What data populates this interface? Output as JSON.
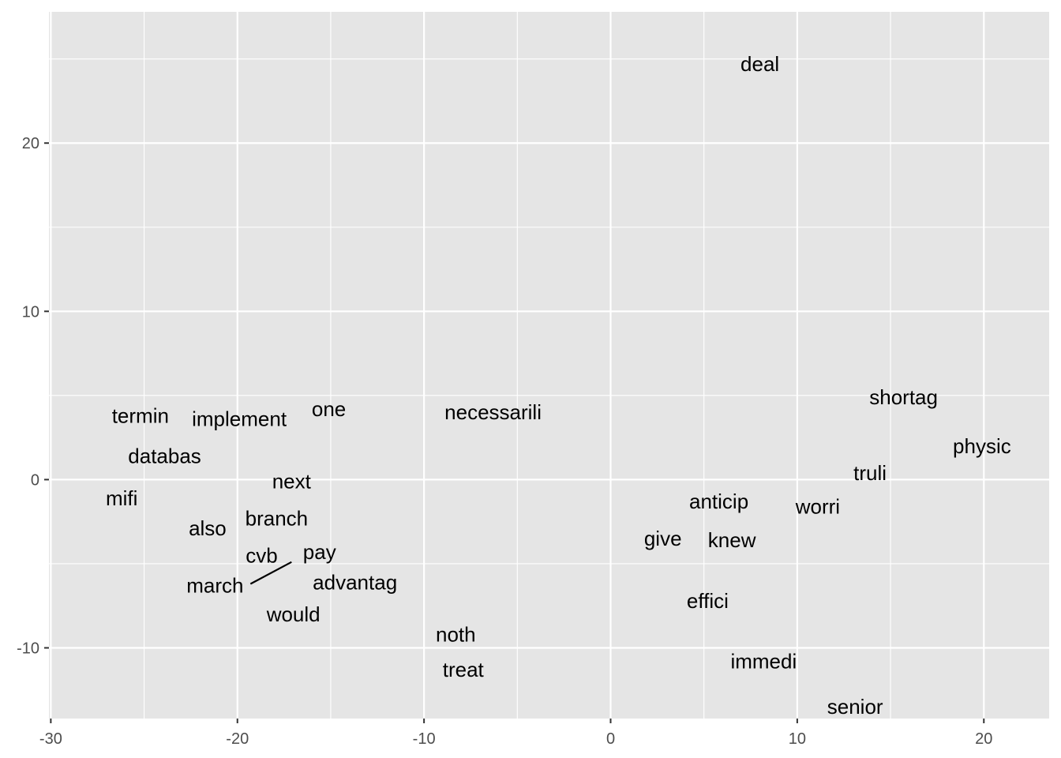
{
  "chart_data": {
    "type": "scatter",
    "title": "",
    "xlabel": "",
    "ylabel": "",
    "xlim": [
      -30.1,
      23.5
    ],
    "ylim": [
      -14.2,
      27.8
    ],
    "x_ticks": [
      -30,
      -20,
      -10,
      0,
      10,
      20
    ],
    "y_ticks": [
      -10,
      0,
      10,
      20
    ],
    "x_tick_labels": [
      "-30",
      "-20",
      "-10",
      "0",
      "10",
      "20"
    ],
    "y_tick_labels": [
      "-10",
      "0",
      "10",
      "20"
    ],
    "grid": true,
    "background_color": "#e5e5e5",
    "grid_color": "#ffffff",
    "points": [
      {
        "label": "deal",
        "x": 8.0,
        "y": 24.7
      },
      {
        "label": "shortag",
        "x": 15.7,
        "y": 4.9
      },
      {
        "label": "physic",
        "x": 19.9,
        "y": 2.0
      },
      {
        "label": "truli",
        "x": 13.9,
        "y": 0.4
      },
      {
        "label": "worri",
        "x": 11.1,
        "y": -1.6
      },
      {
        "label": "anticip",
        "x": 5.8,
        "y": -1.3
      },
      {
        "label": "give",
        "x": 2.8,
        "y": -3.5
      },
      {
        "label": "knew",
        "x": 6.5,
        "y": -3.6
      },
      {
        "label": "effici",
        "x": 5.2,
        "y": -7.2
      },
      {
        "label": "immedi",
        "x": 8.2,
        "y": -10.8
      },
      {
        "label": "senior",
        "x": 13.1,
        "y": -13.5
      },
      {
        "label": "necessarili",
        "x": -6.3,
        "y": 4.0
      },
      {
        "label": "noth",
        "x": -8.3,
        "y": -9.2
      },
      {
        "label": "treat",
        "x": -7.9,
        "y": -11.3
      },
      {
        "label": "termin",
        "x": -25.2,
        "y": 3.8
      },
      {
        "label": "implement",
        "x": -19.9,
        "y": 3.6
      },
      {
        "label": "one",
        "x": -15.1,
        "y": 4.2
      },
      {
        "label": "databas",
        "x": -23.9,
        "y": 1.4
      },
      {
        "label": "mifi",
        "x": -26.2,
        "y": -1.1
      },
      {
        "label": "next",
        "x": -17.1,
        "y": -0.1
      },
      {
        "label": "also",
        "x": -21.6,
        "y": -2.9
      },
      {
        "label": "branch",
        "x": -17.9,
        "y": -2.3
      },
      {
        "label": "cvb",
        "x": -18.7,
        "y": -4.5
      },
      {
        "label": "pay",
        "x": -15.6,
        "y": -4.3
      },
      {
        "label": "march",
        "x": -21.2,
        "y": -6.3
      },
      {
        "label": "advantag",
        "x": -13.7,
        "y": -6.1
      },
      {
        "label": "would",
        "x": -17.0,
        "y": -8.0
      }
    ],
    "segments": [
      {
        "x1": -19.3,
        "y1": -6.2,
        "x2": -17.1,
        "y2": -4.9
      }
    ]
  }
}
